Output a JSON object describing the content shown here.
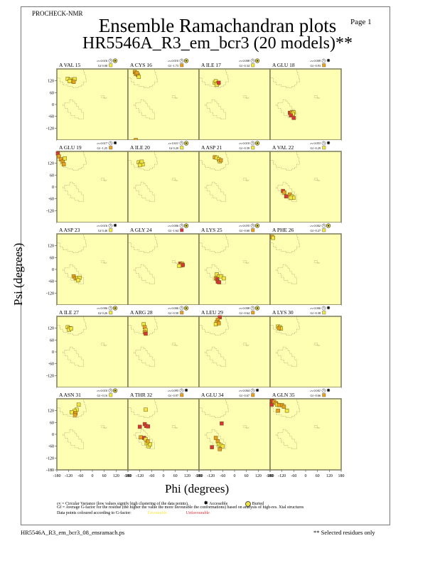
{
  "header": {
    "program": "PROCHECK-NMR",
    "page_label": "Page  1",
    "title_line1": "Ensemble Ramachandran plots",
    "title_line2": "HR5546A_R3_em_bcr3 (20 models)**"
  },
  "legend": {
    "cv_text": "cv = Circular Variance (low values signify high clustering of the data points).",
    "accessible": "Accessible",
    "buried": "Buried",
    "gf_text": "Gf = Average G-factor for the residue (the higher the value the more favourable the conformations) based on analysis of high-res. Xtal structures",
    "colour_text": "Data points coloured according to G-factor:",
    "favourable": "Favourable",
    "unfavourable": "Unfavourable"
  },
  "footer": {
    "filename": "HR5546A_R3_em_bcr3_08_ensramach.ps",
    "note": "** Selected residues only"
  },
  "colors": {
    "panel_bg": "#ffffb4",
    "panel_border": "#7a7a5a",
    "favourable": "#f2e640",
    "mid": "#e8a020",
    "unfavourable": "#d9343c"
  },
  "chart_data": {
    "type": "scatter",
    "xlabel": "Phi (degrees)",
    "ylabel": "Psi (degrees)",
    "xlim": [
      -180,
      180
    ],
    "ylim": [
      -180,
      180
    ],
    "xticks": [
      "-180",
      "-120",
      "-60",
      "0",
      "60",
      "120",
      "180"
    ],
    "yticks": [
      "-180",
      "-120",
      "-60",
      "0",
      "60",
      "120"
    ],
    "panels": [
      {
        "label": "A VAL 15",
        "cv": "cv 0.016",
        "gf": "Gf 0.08",
        "access": "buried",
        "gfclass": "fav",
        "points": [
          [
            -125,
            130,
            "fav"
          ],
          [
            -110,
            125,
            "fav"
          ],
          [
            -100,
            120,
            "fav"
          ],
          [
            -90,
            128,
            "fav"
          ],
          [
            -115,
            118,
            "fav"
          ],
          [
            -95,
            115,
            "mid"
          ]
        ]
      },
      {
        "label": "A CYS 16",
        "cv": "cv 0.010",
        "gf": "Gf -1.73",
        "access": "buried",
        "gfclass": "mid",
        "points": [
          [
            -145,
            165,
            "mid"
          ],
          [
            -140,
            155,
            "mid"
          ],
          [
            -130,
            150,
            "mid"
          ],
          [
            -125,
            140,
            "fav"
          ],
          [
            -135,
            160,
            "mid"
          ],
          [
            -140,
            -180,
            "mid"
          ]
        ]
      },
      {
        "label": "A ILE 17",
        "cv": "cv 0.008",
        "gf": "Gf -0.34",
        "access": "buried",
        "gfclass": "fav",
        "points": [
          [
            -100,
            110,
            "fav"
          ],
          [
            -95,
            118,
            "fav"
          ],
          [
            -85,
            108,
            "mid"
          ],
          [
            -90,
            100,
            "fav"
          ],
          [
            -80,
            110,
            "unfav"
          ]
        ]
      },
      {
        "label": "A GLU 18",
        "cv": "cv 0.009",
        "gf": "Gf -0.93",
        "access": "accessible",
        "gfclass": "mid",
        "points": [
          [
            -80,
            -42,
            "unfav"
          ],
          [
            -70,
            -38,
            "mid"
          ],
          [
            -60,
            -40,
            "fav"
          ],
          [
            -65,
            -48,
            "fav"
          ],
          [
            -75,
            -55,
            "unfav"
          ],
          [
            -60,
            -68,
            "unfav"
          ]
        ]
      },
      {
        "label": "A GLU 19",
        "cv": "cv 0.017",
        "gf": "Gf -1.25",
        "access": "accessible",
        "gfclass": "mid",
        "points": [
          [
            -175,
            170,
            "unfav"
          ],
          [
            -170,
            155,
            "mid"
          ],
          [
            -160,
            140,
            "mid"
          ],
          [
            -150,
            128,
            "mid"
          ],
          [
            -140,
            145,
            "fav"
          ],
          [
            -145,
            115,
            "mid"
          ]
        ]
      },
      {
        "label": "A ILE 20",
        "cv": "cv 0.011",
        "gf": "Gf 0.20",
        "access": "buried",
        "gfclass": "fav",
        "points": [
          [
            -125,
            125,
            "fav"
          ],
          [
            -115,
            118,
            "fav"
          ],
          [
            -105,
            115,
            "fav"
          ],
          [
            -120,
            110,
            "fav"
          ],
          [
            -110,
            128,
            "fav"
          ]
        ]
      },
      {
        "label": "A ASP 21",
        "cv": "cv 0.010",
        "gf": "Gf -0.39",
        "access": "buried",
        "gfclass": "fav",
        "points": [
          [
            -100,
            150,
            "mid"
          ],
          [
            -90,
            148,
            "fav"
          ],
          [
            -80,
            140,
            "fav"
          ],
          [
            -75,
            130,
            "fav"
          ],
          [
            -70,
            135,
            "mid"
          ]
        ]
      },
      {
        "label": "A VAL 22",
        "cv": "cv 0.053",
        "gf": "Gf -0.29",
        "access": "accessible",
        "gfclass": "fav",
        "points": [
          [
            -115,
            -20,
            "unfav"
          ],
          [
            -108,
            -28,
            "mid"
          ],
          [
            -98,
            -48,
            "unfav"
          ],
          [
            -80,
            -38,
            "mid"
          ],
          [
            -70,
            -48,
            "fav"
          ],
          [
            -62,
            -55,
            "fav"
          ],
          [
            -75,
            -55,
            "fav"
          ]
        ]
      },
      {
        "label": "A ASP 23",
        "cv": "cv 0.016",
        "gf": "Gf 0.46",
        "access": "accessible",
        "gfclass": "fav",
        "points": [
          [
            -95,
            -35,
            "mid"
          ],
          [
            -85,
            -45,
            "mid"
          ],
          [
            -75,
            -45,
            "fav"
          ],
          [
            -65,
            -42,
            "fav"
          ],
          [
            -72,
            -55,
            "fav"
          ]
        ]
      },
      {
        "label": "A GLY 24",
        "cv": "cv 0.006",
        "gf": "Gf -1.64",
        "access": "buried",
        "gfclass": "unfav",
        "points": [
          [
            85,
            30,
            "unfav"
          ],
          [
            95,
            28,
            "mid"
          ],
          [
            90,
            20,
            "mid"
          ],
          [
            80,
            18,
            "fav"
          ],
          [
            98,
            22,
            "unfav"
          ]
        ]
      },
      {
        "label": "A LYS 25",
        "cv": "cv 0.035",
        "gf": "Gf -0.60",
        "access": "buried",
        "gfclass": "mid",
        "points": [
          [
            -90,
            -25,
            "fav"
          ],
          [
            -80,
            -35,
            "fav"
          ],
          [
            -70,
            -35,
            "fav"
          ],
          [
            -55,
            -45,
            "fav"
          ],
          [
            -95,
            -45,
            "mid"
          ],
          [
            -88,
            -50,
            "unfav"
          ],
          [
            -85,
            -62,
            "unfav"
          ],
          [
            -78,
            -65,
            "unfav"
          ]
        ]
      },
      {
        "label": "A PHE 26",
        "cv": "cv 0.002",
        "gf": "Gf -0.27",
        "access": "buried",
        "gfclass": "fav",
        "points": [
          [
            -170,
            165,
            "mid"
          ],
          [
            -165,
            160,
            "fav"
          ]
        ]
      },
      {
        "label": "A ILE 27",
        "cv": "cv 0.006",
        "gf": "Gf 0.26",
        "access": "buried",
        "gfclass": "fav",
        "points": [
          [
            -125,
            125,
            "fav"
          ],
          [
            -115,
            120,
            "fav"
          ],
          [
            -118,
            112,
            "fav"
          ],
          [
            -108,
            118,
            "fav"
          ]
        ]
      },
      {
        "label": "A ARG 28",
        "cv": "cv 0.006",
        "gf": "Gf -0.50",
        "access": "buried",
        "gfclass": "mid",
        "points": [
          [
            -100,
            140,
            "fav"
          ],
          [
            -95,
            125,
            "mid"
          ],
          [
            -90,
            110,
            "fav"
          ],
          [
            -95,
            100,
            "mid"
          ],
          [
            -90,
            92,
            "unfav"
          ]
        ]
      },
      {
        "label": "A LEU 29",
        "cv": "cv 0.008",
        "gf": "Gf -0.64",
        "access": "buried",
        "gfclass": "mid",
        "points": [
          [
            -75,
            175,
            "unfav"
          ],
          [
            -85,
            162,
            "mid"
          ],
          [
            -90,
            150,
            "mid"
          ],
          [
            -95,
            140,
            "fav"
          ],
          [
            -80,
            145,
            "mid"
          ]
        ]
      },
      {
        "label": "A LYS 30",
        "cv": "cv 0.006",
        "gf": "Gf -0.38",
        "access": "accessible",
        "gfclass": "fav",
        "points": [
          [
            -140,
            128,
            "fav"
          ],
          [
            -130,
            125,
            "fav"
          ],
          [
            -125,
            118,
            "fav"
          ],
          [
            -135,
            120,
            "mid"
          ]
        ]
      },
      {
        "label": "A ASN 31",
        "cv": "cv 0.010",
        "gf": "Gf -0.16",
        "access": "buried",
        "gfclass": "fav",
        "points": [
          [
            -70,
            150,
            "fav"
          ],
          [
            -80,
            125,
            "fav"
          ],
          [
            -90,
            118,
            "fav"
          ],
          [
            -105,
            112,
            "fav"
          ],
          [
            -85,
            108,
            "mid"
          ],
          [
            -88,
            98,
            "mid"
          ]
        ]
      },
      {
        "label": "A THR 32",
        "cv": "cv 0.095",
        "gf": "Gf -0.97",
        "access": "accessible",
        "gfclass": "mid",
        "points": [
          [
            -115,
            -15,
            "mid"
          ],
          [
            -98,
            -18,
            "unfav"
          ],
          [
            -90,
            -25,
            "fav"
          ],
          [
            -85,
            -45,
            "fav"
          ],
          [
            -75,
            -60,
            "fav"
          ],
          [
            -68,
            -50,
            "fav"
          ],
          [
            -80,
            -35,
            "mid"
          ],
          [
            -95,
            52,
            "unfav"
          ],
          [
            -88,
            42,
            "unfav"
          ],
          [
            -120,
            38,
            "unfav"
          ],
          [
            -78,
            40,
            "unfav"
          ],
          [
            -90,
            125,
            "fav"
          ]
        ]
      },
      {
        "label": "A GLU 34",
        "cv": "cv 0.064",
        "gf": "Gf -0.67",
        "access": "accessible",
        "gfclass": "mid",
        "points": [
          [
            -65,
            55,
            "unfav"
          ],
          [
            -95,
            -18,
            "mid"
          ],
          [
            -85,
            -35,
            "mid"
          ],
          [
            -80,
            -50,
            "fav"
          ],
          [
            -70,
            -55,
            "fav"
          ],
          [
            -60,
            -60,
            "fav"
          ],
          [
            -75,
            -75,
            "mid"
          ],
          [
            -115,
            -65,
            "unfav"
          ]
        ]
      },
      {
        "label": "A GLN 35",
        "cv": "cv 0.041",
        "gf": "Gf -0.66",
        "access": "accessible",
        "gfclass": "mid",
        "points": [
          [
            -170,
            170,
            "unfav"
          ],
          [
            -172,
            150,
            "unfav"
          ],
          [
            -160,
            165,
            "mid"
          ],
          [
            -150,
            158,
            "mid"
          ],
          [
            -145,
            150,
            "fav"
          ],
          [
            -135,
            148,
            "mid"
          ],
          [
            -120,
            148,
            "mid"
          ],
          [
            -110,
            140,
            "mid"
          ],
          [
            -95,
            120,
            "fav"
          ],
          [
            -140,
            120,
            "mid"
          ]
        ]
      }
    ]
  }
}
